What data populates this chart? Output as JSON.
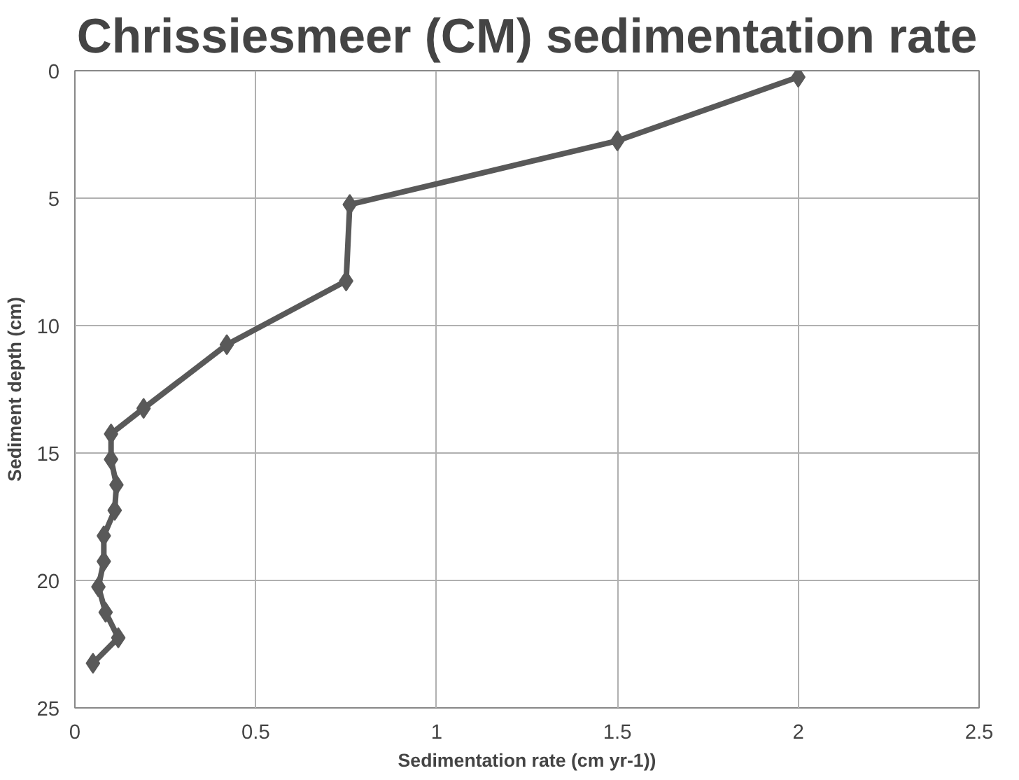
{
  "chart_data": {
    "type": "line",
    "title": "Chrissiesmeer (CM) sedimentation rate",
    "xlabel": "Sedimentation rate (cm yr-1))",
    "ylabel": "Sediment depth (cm)",
    "series": [
      {
        "color": "#595959",
        "x": [
          2.0,
          1.5,
          0.76,
          0.75,
          0.42,
          0.19,
          0.1,
          0.1,
          0.115,
          0.11,
          0.08,
          0.08,
          0.065,
          0.085,
          0.12,
          0.05
        ],
        "values": [
          0.25,
          2.75,
          5.25,
          8.25,
          10.75,
          13.25,
          14.25,
          15.25,
          16.25,
          17.25,
          18.25,
          19.25,
          20.25,
          21.25,
          22.25,
          23.25
        ]
      }
    ],
    "xlim": [
      0,
      2.5
    ],
    "xticks": [
      0,
      0.5,
      1,
      1.5,
      2,
      2.5
    ],
    "ylim": [
      25,
      0
    ],
    "yticks": [
      0,
      5,
      10,
      15,
      20,
      25
    ],
    "grid": true,
    "marker": "diamond",
    "line_style": "solid"
  }
}
